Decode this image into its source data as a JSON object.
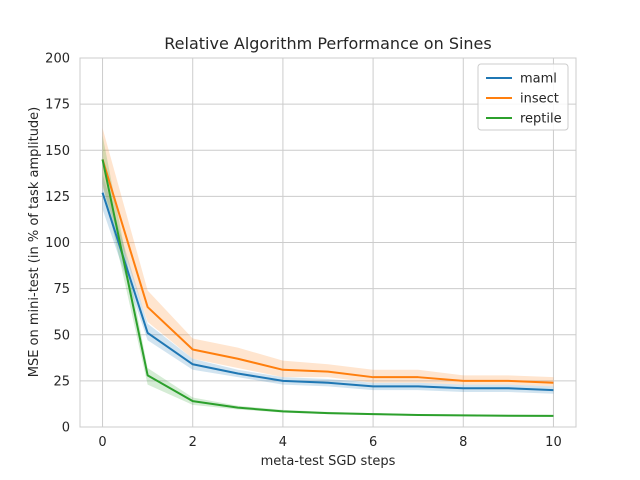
{
  "chart_data": {
    "type": "line",
    "title": "Relative Algorithm Performance on Sines",
    "xlabel": "meta-test SGD steps",
    "ylabel": "MSE on mini-test (in % of task amplitude)",
    "xlim": [
      -0.5,
      10.5
    ],
    "ylim": [
      0,
      200
    ],
    "xticks": [
      0,
      2,
      4,
      6,
      8,
      10
    ],
    "yticks": [
      0,
      25,
      50,
      75,
      100,
      125,
      150,
      175,
      200
    ],
    "grid": true,
    "legend_position": "top-right",
    "x": [
      0,
      1,
      2,
      3,
      4,
      5,
      6,
      7,
      8,
      9,
      10
    ],
    "series": [
      {
        "name": "maml",
        "color": "#1f77b4",
        "values": [
          127,
          51,
          34,
          29,
          25,
          24,
          22,
          22,
          21,
          21,
          20
        ],
        "lower": [
          118,
          47,
          31,
          27,
          23,
          22,
          20,
          20,
          19,
          19,
          18
        ],
        "upper": [
          137,
          56,
          37,
          31,
          27,
          26,
          24,
          24,
          23,
          23,
          22
        ]
      },
      {
        "name": "insect",
        "color": "#ff7f0e",
        "values": [
          145,
          65,
          42,
          37,
          31,
          30,
          27,
          27,
          25,
          25,
          24
        ],
        "lower": [
          130,
          57,
          37,
          32,
          27,
          27,
          24,
          24,
          23,
          23,
          22
        ],
        "upper": [
          162,
          74,
          48,
          43,
          36,
          34,
          31,
          31,
          28,
          28,
          27
        ]
      },
      {
        "name": "reptile",
        "color": "#2ca02c",
        "values": [
          145,
          28,
          14,
          10.5,
          8.5,
          7.5,
          7,
          6.5,
          6.3,
          6.1,
          6
        ],
        "lower": [
          132,
          23,
          12,
          9.5,
          7.8,
          7,
          6.5,
          6,
          5.8,
          5.6,
          5.5
        ],
        "upper": [
          158,
          32,
          16,
          11.5,
          9.3,
          8.2,
          7.5,
          7,
          6.8,
          6.6,
          6.5
        ]
      }
    ]
  }
}
